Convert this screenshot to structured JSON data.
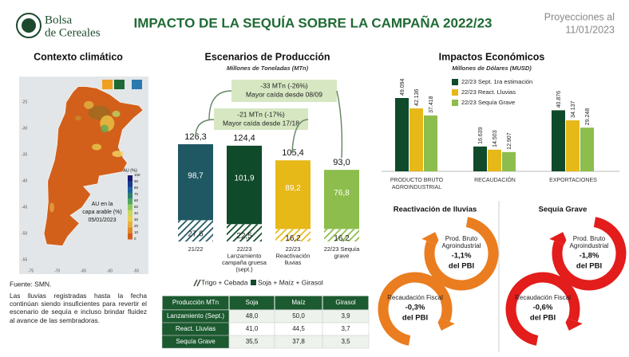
{
  "header": {
    "org_lines": [
      "Bolsa",
      "de Cereales"
    ],
    "title": "IMPACTO DE LA SEQUÍA SOBRE LA CAMPAÑA 2022/23",
    "projection_lines": [
      "Proyecciones al",
      "11/01/2023"
    ]
  },
  "climate": {
    "title": "Contexto climático",
    "legend_title": "AU (%)",
    "legend_ticks": [
      100,
      90,
      80,
      70,
      60,
      50,
      40,
      30,
      20,
      10,
      0
    ],
    "map_xticks": [
      -75,
      -70,
      -65,
      -60,
      -55
    ],
    "map_yticks": [
      -25,
      -30,
      -35,
      -40,
      -45,
      -50,
      -55
    ],
    "note_lines": [
      "AU en la",
      "capa arable (%)",
      "05/01/2023"
    ],
    "source": "Fuente: SMN.",
    "text": "Las lluvias registradas hasta la fecha continúan siendo insuficientes para revertir el escenario de sequía e incluso brindar fluidez al avance de las sembradoras."
  },
  "chart_data": [
    {
      "type": "stacked-bar",
      "title": "Escenarios de Producción",
      "subtitle": "Millones de Toneladas (MTn)",
      "categories": [
        [
          "21/22"
        ],
        [
          "22/23",
          "Lanzamiento",
          "campaña gruesa",
          "(sept.)"
        ],
        [
          "22/23",
          "Reactivación",
          "lluvias"
        ],
        [
          "22/23 Sequía",
          "grave"
        ]
      ],
      "colors": [
        "#1f5863",
        "#0f4a2a",
        "#e6b818",
        "#8dbd4c"
      ],
      "series": [
        {
          "name": "Trigo + Cebada",
          "color": "#3a4a3a",
          "values": [
            27.6,
            22.5,
            16.2,
            16.2
          ],
          "value_labels": [
            "27,6",
            "22,5",
            "16,2",
            "16,2"
          ]
        },
        {
          "name": "Soja + Maíz + Girasol",
          "color": "#0f4a2a",
          "values": [
            98.7,
            101.9,
            89.2,
            76.8
          ],
          "value_labels": [
            "98,7",
            "101,9",
            "89,2",
            "76,8"
          ]
        }
      ],
      "totals": [
        126.3,
        124.4,
        105.4,
        93.0
      ],
      "total_labels": [
        "126,3",
        "124,4",
        "105,4",
        "93,0"
      ],
      "annotations": [
        [
          "-33 MTn (-26%)",
          "Mayor caída desde 08/09"
        ],
        [
          "-21 MTn (-17%)",
          "Mayor caída desde 17/18"
        ]
      ]
    },
    {
      "type": "grouped-bar",
      "title": "Impactos Económicos",
      "subtitle": "Millones de Dólares (MUSD)",
      "categories": [
        [
          "PRODUCTO BRUTO",
          "AGROINDUSTRIAL"
        ],
        [
          "RECAUDACIÓN"
        ],
        [
          "EXPORTACIONES"
        ]
      ],
      "series": [
        {
          "name": "22/23 Sept. 1ra estimación",
          "color": "#0f4a2a",
          "values": [
            49094,
            16639,
            40876
          ],
          "value_labels": [
            "49.094",
            "16.639",
            "40.876"
          ]
        },
        {
          "name": "22/23 React. Lluvias",
          "color": "#e6b818",
          "values": [
            42136,
            14503,
            34137
          ],
          "value_labels": [
            "42.136",
            "14.503",
            "34.137"
          ]
        },
        {
          "name": "22/23 Sequía Grave",
          "color": "#8dbd4c",
          "values": [
            37418,
            12907,
            29248
          ],
          "value_labels": [
            "37.418",
            "12.907",
            "29.248"
          ]
        }
      ]
    }
  ],
  "table": {
    "header": [
      "Producción MTn",
      "Soja",
      "Maíz",
      "Girasol"
    ],
    "rows": [
      [
        "Lanzamiento (Sept.)",
        "48,0",
        "50,0",
        "3,9"
      ],
      [
        "React. Lluvias",
        "41,0",
        "44,5",
        "3,7"
      ],
      [
        "Sequía Grave",
        "35,5",
        "37,8",
        "3,5"
      ]
    ]
  },
  "scenarios": [
    {
      "title": "Reactivación de lluvias",
      "color": "#ea7d1f",
      "items": [
        {
          "label_lines": [
            "Prod. Bruto",
            "Agroindustrial"
          ],
          "value": "-1,1%",
          "unit": "del PBI"
        },
        {
          "label_lines": [
            "Recaudación Fiscal"
          ],
          "value": "-0,3%",
          "unit": "del PBI"
        }
      ]
    },
    {
      "title": "Sequía Grave",
      "color": "#e31c1c",
      "items": [
        {
          "label_lines": [
            "Prod. Bruto",
            "Agroindustrial"
          ],
          "value": "-1,8%",
          "unit": "del PBI"
        },
        {
          "label_lines": [
            "Recaudación Fiscal"
          ],
          "value": "-0,6%",
          "unit": "del PBI"
        }
      ]
    }
  ]
}
